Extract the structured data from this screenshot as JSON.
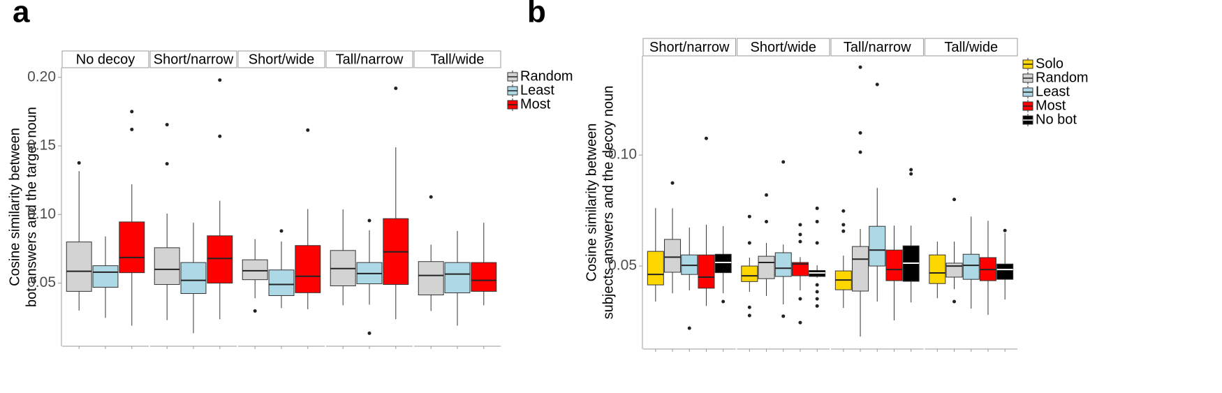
{
  "chart_data": [
    {
      "type": "box",
      "panel_label": "a",
      "y_label": [
        "Cosine similarity between",
        "bot answers and the target noun"
      ],
      "facets": [
        "No decoy",
        "Short/narrow",
        "Short/wide",
        "Tall/narrow",
        "Tall/wide"
      ],
      "series": [
        {
          "name": "Random",
          "color": "#d3d3d3"
        },
        {
          "name": "Least",
          "color": "#add8e6"
        },
        {
          "name": "Most",
          "color": "#ff0000"
        }
      ],
      "ylim": [
        0.004,
        0.207
      ],
      "yticks": [
        0.05,
        {
          "value": 0.1,
          "label": "0.10"
        },
        0.15,
        {
          "value": 0.2,
          "label": "0.20"
        }
      ],
      "boxes": [
        [
          {
            "min": 0.03,
            "q1": 0.044,
            "median": 0.0586,
            "q3": 0.08,
            "max": 0.1316,
            "outliers": [
              0.1376
            ]
          },
          {
            "min": 0.0247,
            "q1": 0.047,
            "median": 0.058,
            "q3": 0.0627,
            "max": 0.084,
            "outliers": []
          },
          {
            "min": 0.019,
            "q1": 0.0576,
            "median": 0.0687,
            "q3": 0.0946,
            "max": 0.122,
            "outliers": [
              0.175,
              0.162
            ]
          }
        ],
        [
          {
            "min": 0.023,
            "q1": 0.049,
            "median": 0.06,
            "q3": 0.0758,
            "max": 0.1007,
            "outliers": [
              0.1655,
              0.137
            ]
          },
          {
            "min": 0.0135,
            "q1": 0.0424,
            "median": 0.052,
            "q3": 0.065,
            "max": 0.094,
            "outliers": []
          },
          {
            "min": 0.0237,
            "q1": 0.05,
            "median": 0.068,
            "q3": 0.0845,
            "max": 0.11,
            "outliers": [
              0.198,
              0.157
            ]
          }
        ],
        [
          {
            "min": 0.039,
            "q1": 0.0525,
            "median": 0.059,
            "q3": 0.067,
            "max": 0.082,
            "outliers": [
              0.0297
            ]
          },
          {
            "min": 0.0318,
            "q1": 0.0409,
            "median": 0.049,
            "q3": 0.0596,
            "max": 0.0804,
            "outliers": [
              0.088
            ]
          },
          {
            "min": 0.031,
            "q1": 0.043,
            "median": 0.055,
            "q3": 0.0774,
            "max": 0.104,
            "outliers": [
              0.1615
            ]
          }
        ],
        [
          {
            "min": 0.0338,
            "q1": 0.048,
            "median": 0.0606,
            "q3": 0.0738,
            "max": 0.1037,
            "outliers": []
          },
          {
            "min": 0.0343,
            "q1": 0.0495,
            "median": 0.057,
            "q3": 0.065,
            "max": 0.0885,
            "outliers": [
              0.0956,
              0.0135
            ]
          },
          {
            "min": 0.0237,
            "q1": 0.049,
            "median": 0.0728,
            "q3": 0.097,
            "max": 0.149,
            "outliers": [
              0.192
            ]
          }
        ],
        [
          {
            "min": 0.0297,
            "q1": 0.0414,
            "median": 0.0556,
            "q3": 0.0657,
            "max": 0.078,
            "outliers": [
              0.1128
            ]
          },
          {
            "min": 0.019,
            "q1": 0.0429,
            "median": 0.0566,
            "q3": 0.065,
            "max": 0.088,
            "outliers": []
          },
          {
            "min": 0.0338,
            "q1": 0.044,
            "median": 0.052,
            "q3": 0.065,
            "max": 0.094,
            "outliers": []
          }
        ]
      ]
    },
    {
      "type": "box",
      "panel_label": "b",
      "y_label": [
        "Cosine similarity between",
        "subjects answers and the decoy noun"
      ],
      "facets": [
        "Short/narrow",
        "Short/wide",
        "Tall/narrow",
        "Tall/wide"
      ],
      "series": [
        {
          "name": "Solo",
          "color": "#ffd700"
        },
        {
          "name": "Random",
          "color": "#d3d3d3"
        },
        {
          "name": "Least",
          "color": "#add8e6"
        },
        {
          "name": "Most",
          "color": "#ff0000"
        },
        {
          "name": "No bot",
          "color": "#000000"
        }
      ],
      "ylim": [
        0.0126,
        0.1447
      ],
      "yticks": [
        0.05,
        {
          "value": 0.1,
          "label": "0.10"
        }
      ],
      "boxes": [
        [
          {
            "min": 0.034,
            "q1": 0.0415,
            "median": 0.0462,
            "q3": 0.0566,
            "max": 0.0761,
            "outliers": []
          },
          {
            "min": 0.0377,
            "q1": 0.0472,
            "median": 0.054,
            "q3": 0.062,
            "max": 0.076,
            "outliers": [
              0.0874
            ]
          },
          {
            "min": 0.039,
            "q1": 0.0462,
            "median": 0.0503,
            "q3": 0.055,
            "max": 0.0673,
            "outliers": [
              0.022
            ]
          },
          {
            "min": 0.032,
            "q1": 0.04,
            "median": 0.045,
            "q3": 0.055,
            "max": 0.0686,
            "outliers": [
              0.1075
            ]
          },
          {
            "min": 0.0377,
            "q1": 0.047,
            "median": 0.0516,
            "q3": 0.0553,
            "max": 0.068,
            "outliers": [
              0.034
            ]
          }
        ],
        [
          {
            "min": 0.0384,
            "q1": 0.043,
            "median": 0.0456,
            "q3": 0.05,
            "max": 0.0538,
            "outliers": [
              0.0723,
              0.0604,
              0.0314,
              0.0277
            ]
          },
          {
            "min": 0.0365,
            "q1": 0.0443,
            "median": 0.0516,
            "q3": 0.0544,
            "max": 0.0604,
            "outliers": [
              0.082,
              0.07
            ]
          },
          {
            "min": 0.0327,
            "q1": 0.0453,
            "median": 0.049,
            "q3": 0.056,
            "max": 0.0597,
            "outliers": [
              0.0969,
              0.0274
            ]
          },
          {
            "min": 0.039,
            "q1": 0.0456,
            "median": 0.0509,
            "q3": 0.0516,
            "max": 0.054,
            "outliers": [
              0.0686,
              0.0642,
              0.061,
              0.0352,
              0.0245
            ]
          },
          {
            "min": 0.0447,
            "q1": 0.0453,
            "median": 0.0469,
            "q3": 0.048,
            "max": 0.0503,
            "outliers": [
              0.076,
              0.07,
              0.0604,
              0.0415,
              0.0384,
              0.0352,
              0.032
            ]
          }
        ],
        [
          {
            "min": 0.0311,
            "q1": 0.0393,
            "median": 0.0437,
            "q3": 0.0478,
            "max": 0.0547,
            "outliers": [
              0.0748,
              0.0686,
              0.0657
            ]
          },
          {
            "min": 0.0182,
            "q1": 0.0387,
            "median": 0.0531,
            "q3": 0.0588,
            "max": 0.0667,
            "outliers": [
              0.1396,
              0.11,
              0.1013
            ]
          },
          {
            "min": 0.034,
            "q1": 0.05,
            "median": 0.0572,
            "q3": 0.0679,
            "max": 0.0852,
            "outliers": [
              0.1318
            ]
          },
          {
            "min": 0.0255,
            "q1": 0.0434,
            "median": 0.0484,
            "q3": 0.0572,
            "max": 0.0682,
            "outliers": []
          },
          {
            "min": 0.0336,
            "q1": 0.0431,
            "median": 0.0513,
            "q3": 0.0591,
            "max": 0.0682,
            "outliers": [
              0.0934,
              0.0915
            ]
          }
        ],
        [
          {
            "min": 0.0355,
            "q1": 0.0421,
            "median": 0.0469,
            "q3": 0.055,
            "max": 0.061,
            "outliers": []
          },
          {
            "min": 0.0396,
            "q1": 0.045,
            "median": 0.05,
            "q3": 0.0513,
            "max": 0.061,
            "outliers": [
              0.08,
              0.034
            ]
          },
          {
            "min": 0.0308,
            "q1": 0.044,
            "median": 0.0503,
            "q3": 0.0553,
            "max": 0.0723,
            "outliers": []
          },
          {
            "min": 0.028,
            "q1": 0.0434,
            "median": 0.0484,
            "q3": 0.0538,
            "max": 0.0704,
            "outliers": []
          },
          {
            "min": 0.0349,
            "q1": 0.044,
            "median": 0.0484,
            "q3": 0.0509,
            "max": 0.0648,
            "outliers": [
              0.066
            ]
          }
        ]
      ]
    }
  ]
}
